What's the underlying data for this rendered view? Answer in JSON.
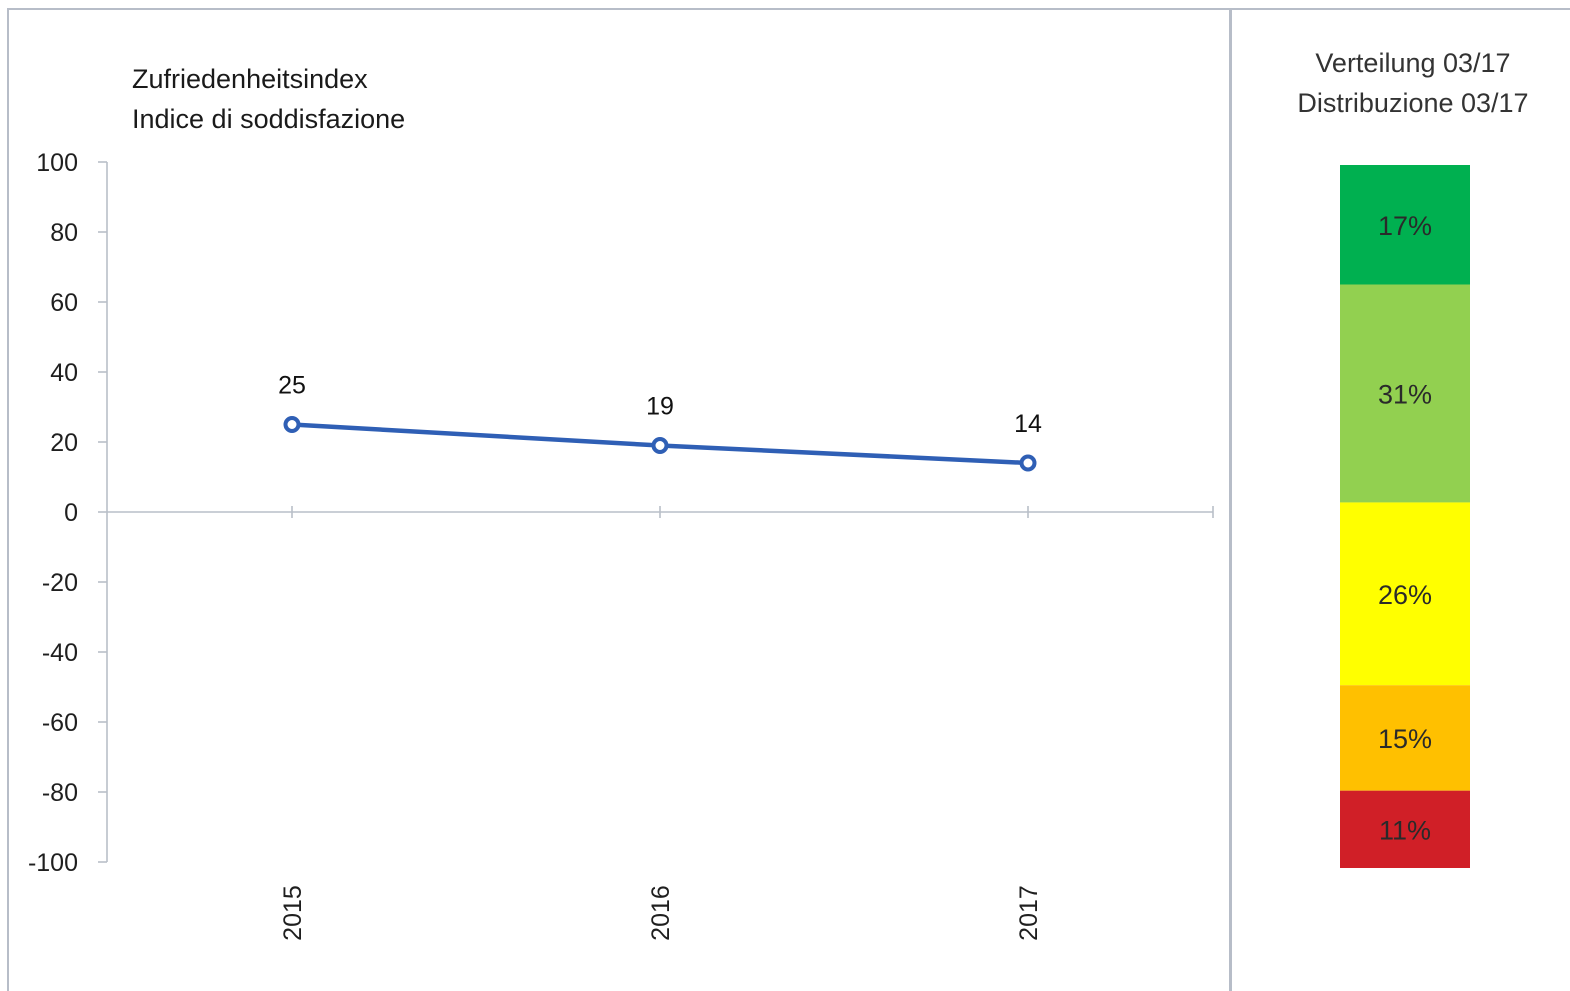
{
  "colors": {
    "line": "#2f5fb5",
    "marker_fill": "#ffffff",
    "axis": "#b9bfc8"
  },
  "chart_data": [
    {
      "type": "line",
      "title_lines": [
        "Zufriedenheitsindex",
        "Indice di soddisfazione"
      ],
      "categories": [
        "2015",
        "2016",
        "2017"
      ],
      "series": [
        {
          "values": [
            25,
            19,
            14
          ],
          "data_labels": [
            "25",
            "19",
            "14"
          ]
        }
      ],
      "ylim": [
        -100,
        100
      ],
      "yticks": [
        100,
        80,
        60,
        40,
        20,
        0,
        -20,
        -40,
        -60,
        -80,
        -100
      ],
      "ytick_labels": [
        "100",
        "80",
        "60",
        "40",
        "20",
        "0",
        "-20",
        "-40",
        "-60",
        "-80",
        "-100"
      ],
      "grid": false,
      "legend": "none"
    },
    {
      "type": "bar",
      "stacked": true,
      "title_lines": [
        "Verteilung 03/17",
        "Distribuzione 03/17"
      ],
      "segments": [
        {
          "label": "17%",
          "value": 17,
          "color": "#00b050"
        },
        {
          "label": "31%",
          "value": 31,
          "color": "#92d050"
        },
        {
          "label": "26%",
          "value": 26,
          "color": "#ffff00"
        },
        {
          "label": "15%",
          "value": 15,
          "color": "#ffc000"
        },
        {
          "label": "11%",
          "value": 11,
          "color": "#d01f27"
        }
      ]
    }
  ]
}
